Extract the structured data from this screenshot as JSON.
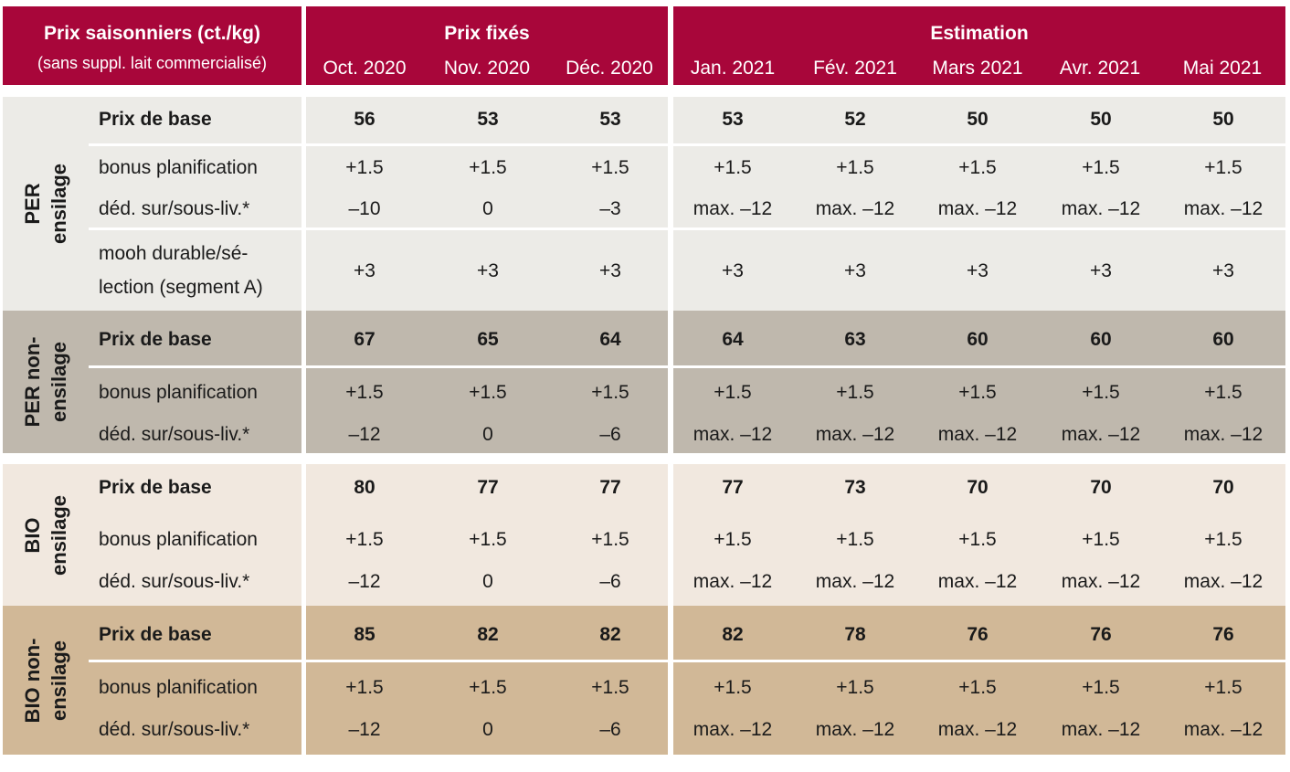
{
  "header": {
    "title": "Prix saisonniers (ct./kg)",
    "subtitle": "(sans suppl. lait commercialisé)",
    "fixed_label": "Prix fixés",
    "estimate_label": "Estimation",
    "months": [
      "Oct. 2020",
      "Nov. 2020",
      "Déc. 2020",
      "Jan. 2021",
      "Fév. 2021",
      "Mars 2021",
      "Avr. 2021",
      "Mai 2021"
    ]
  },
  "groups": [
    {
      "label_lines": [
        "PER",
        "ensilage"
      ],
      "rows": [
        {
          "label": "Prix de base",
          "bold": true,
          "values": [
            "56",
            "53",
            "53",
            "53",
            "52",
            "50",
            "50",
            "50"
          ]
        },
        {
          "label": "bonus planification",
          "bold": false,
          "values": [
            "+1.5",
            "+1.5",
            "+1.5",
            "+1.5",
            "+1.5",
            "+1.5",
            "+1.5",
            "+1.5"
          ]
        },
        {
          "label": "déd. sur/sous-liv.*",
          "bold": false,
          "values": [
            "–10",
            "0",
            "–3",
            "max. –12",
            "max. –12",
            "max. –12",
            "max. –12",
            "max. –12"
          ]
        },
        {
          "label_lines": [
            "mooh durable/sé-",
            "lection (segment A)"
          ],
          "bold": false,
          "values": [
            "+3",
            "+3",
            "+3",
            "+3",
            "+3",
            "+3",
            "+3",
            "+3"
          ]
        }
      ]
    },
    {
      "label_lines": [
        "PER non-",
        "ensilage"
      ],
      "rows": [
        {
          "label": "Prix de base",
          "bold": true,
          "values": [
            "67",
            "65",
            "64",
            "64",
            "63",
            "60",
            "60",
            "60"
          ]
        },
        {
          "label": "bonus planification",
          "bold": false,
          "values": [
            "+1.5",
            "+1.5",
            "+1.5",
            "+1.5",
            "+1.5",
            "+1.5",
            "+1.5",
            "+1.5"
          ]
        },
        {
          "label": "déd. sur/sous-liv.*",
          "bold": false,
          "values": [
            "–12",
            "0",
            "–6",
            "max. –12",
            "max. –12",
            "max. –12",
            "max. –12",
            "max. –12"
          ]
        }
      ]
    },
    {
      "label_lines": [
        "BIO",
        "ensilage"
      ],
      "rows": [
        {
          "label": "Prix de base",
          "bold": true,
          "values": [
            "80",
            "77",
            "77",
            "77",
            "73",
            "70",
            "70",
            "70"
          ]
        },
        {
          "label": "bonus planification",
          "bold": false,
          "values": [
            "+1.5",
            "+1.5",
            "+1.5",
            "+1.5",
            "+1.5",
            "+1.5",
            "+1.5",
            "+1.5"
          ]
        },
        {
          "label": "déd. sur/sous-liv.*",
          "bold": false,
          "values": [
            "–12",
            "0",
            "–6",
            "max. –12",
            "max. –12",
            "max. –12",
            "max. –12",
            "max. –12"
          ]
        }
      ]
    },
    {
      "label_lines": [
        "BIO non-",
        "ensilage"
      ],
      "rows": [
        {
          "label": "Prix de base",
          "bold": true,
          "values": [
            "85",
            "82",
            "82",
            "82",
            "78",
            "76",
            "76",
            "76"
          ]
        },
        {
          "label": "bonus planification",
          "bold": false,
          "values": [
            "+1.5",
            "+1.5",
            "+1.5",
            "+1.5",
            "+1.5",
            "+1.5",
            "+1.5",
            "+1.5"
          ]
        },
        {
          "label": "déd. sur/sous-liv.*",
          "bold": false,
          "values": [
            "–12",
            "0",
            "–6",
            "max. –12",
            "max. –12",
            "max. –12",
            "max. –12",
            "max. –12"
          ]
        }
      ]
    }
  ]
}
